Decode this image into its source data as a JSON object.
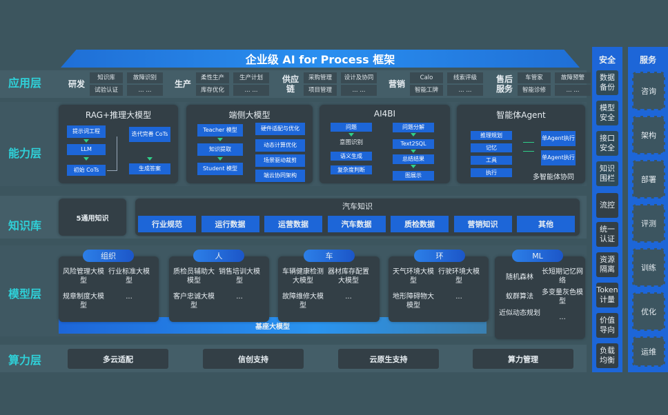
{
  "title": "企业级 AI for Process 框架",
  "layers": [
    "应用层",
    "能力层",
    "知识库",
    "模型层",
    "算力层"
  ],
  "app": [
    {
      "name": "研发",
      "items": [
        "知识库",
        "故障识别",
        "试验认证",
        "... ..."
      ]
    },
    {
      "name": "生产",
      "items": [
        "柔性生产",
        "生产计划",
        "库存优化",
        "... ..."
      ]
    },
    {
      "name": "供应链",
      "items": [
        "采购管理",
        "设计及协同",
        "项目管理",
        "... ..."
      ]
    },
    {
      "name": "营销",
      "items": [
        "Calo",
        "线索评级",
        "智能工牌",
        "... ..."
      ]
    },
    {
      "name": "售后服务",
      "items": [
        "车管家",
        "故障预警",
        "智能诊修",
        "... ..."
      ]
    }
  ],
  "capability": {
    "rag": {
      "title": "RAG+推理大模型",
      "steps": [
        "提示词工程",
        "LLM",
        "初始 CoTs",
        "迭代完善 CoTs",
        "生成答案"
      ]
    },
    "edge": {
      "title": "端侧大模型",
      "left": [
        "Teacher 模型",
        "知识提取",
        "Student 模型"
      ],
      "right": [
        "硬件适配与优化",
        "动态计算优化",
        "场景驱动裁剪",
        "端云协同架构"
      ]
    },
    "ai4bi": {
      "title": "AI4BI",
      "left": [
        "问题",
        "意图识别",
        "语义生成",
        "复杂度判断"
      ],
      "right": [
        "问题分解",
        "Text2SQL",
        "总结结果",
        "图展示"
      ]
    },
    "agent": {
      "title": "智能体Agent",
      "left": [
        "推理规划",
        "记忆",
        "工具",
        "执行"
      ],
      "right": [
        "单Agent执行",
        "单Agent执行"
      ],
      "footer": "多智能体协同"
    }
  },
  "knowledge": {
    "general": "5通用知识",
    "auto_title": "汽车知识",
    "items": [
      "行业规范",
      "运行数据",
      "运营数据",
      "汽车数据",
      "质检数据",
      "营销知识",
      "其他"
    ]
  },
  "models": [
    {
      "tag": "组织",
      "items": [
        "风险管理大模型",
        "行业标准大模型",
        "规章制度大模型",
        "..."
      ]
    },
    {
      "tag": "人",
      "items": [
        "质检员辅助大模型",
        "销售培训大模型",
        "客户忠诚大模型",
        "..."
      ]
    },
    {
      "tag": "车",
      "items": [
        "车辆健康检测大模型",
        "器材库存配置大模型",
        "故障维修大模型",
        "..."
      ]
    },
    {
      "tag": "环",
      "items": [
        "天气环境大模型",
        "行驶环境大模型",
        "地形障碍物大模型",
        "..."
      ]
    },
    {
      "tag": "ML",
      "items": [
        "随机森林",
        "长短期记忆网络",
        "蚁群算法",
        "多变量灰色模型",
        "近似动态规划",
        "..."
      ]
    }
  ],
  "base_model": "基座大模型",
  "compute": [
    "多云适配",
    "信创支持",
    "云原生支持",
    "算力管理"
  ],
  "security": {
    "title": "安全",
    "items": [
      "数据备份",
      "模型安全",
      "接口安全",
      "知识围栏",
      "流控",
      "统一认证",
      "资源隔离",
      "Token计量",
      "价值导向",
      "负载均衡"
    ]
  },
  "service": {
    "title": "服务",
    "items": [
      "咨询",
      "架构",
      "部署",
      "评测",
      "训练",
      "优化",
      "运维"
    ]
  }
}
